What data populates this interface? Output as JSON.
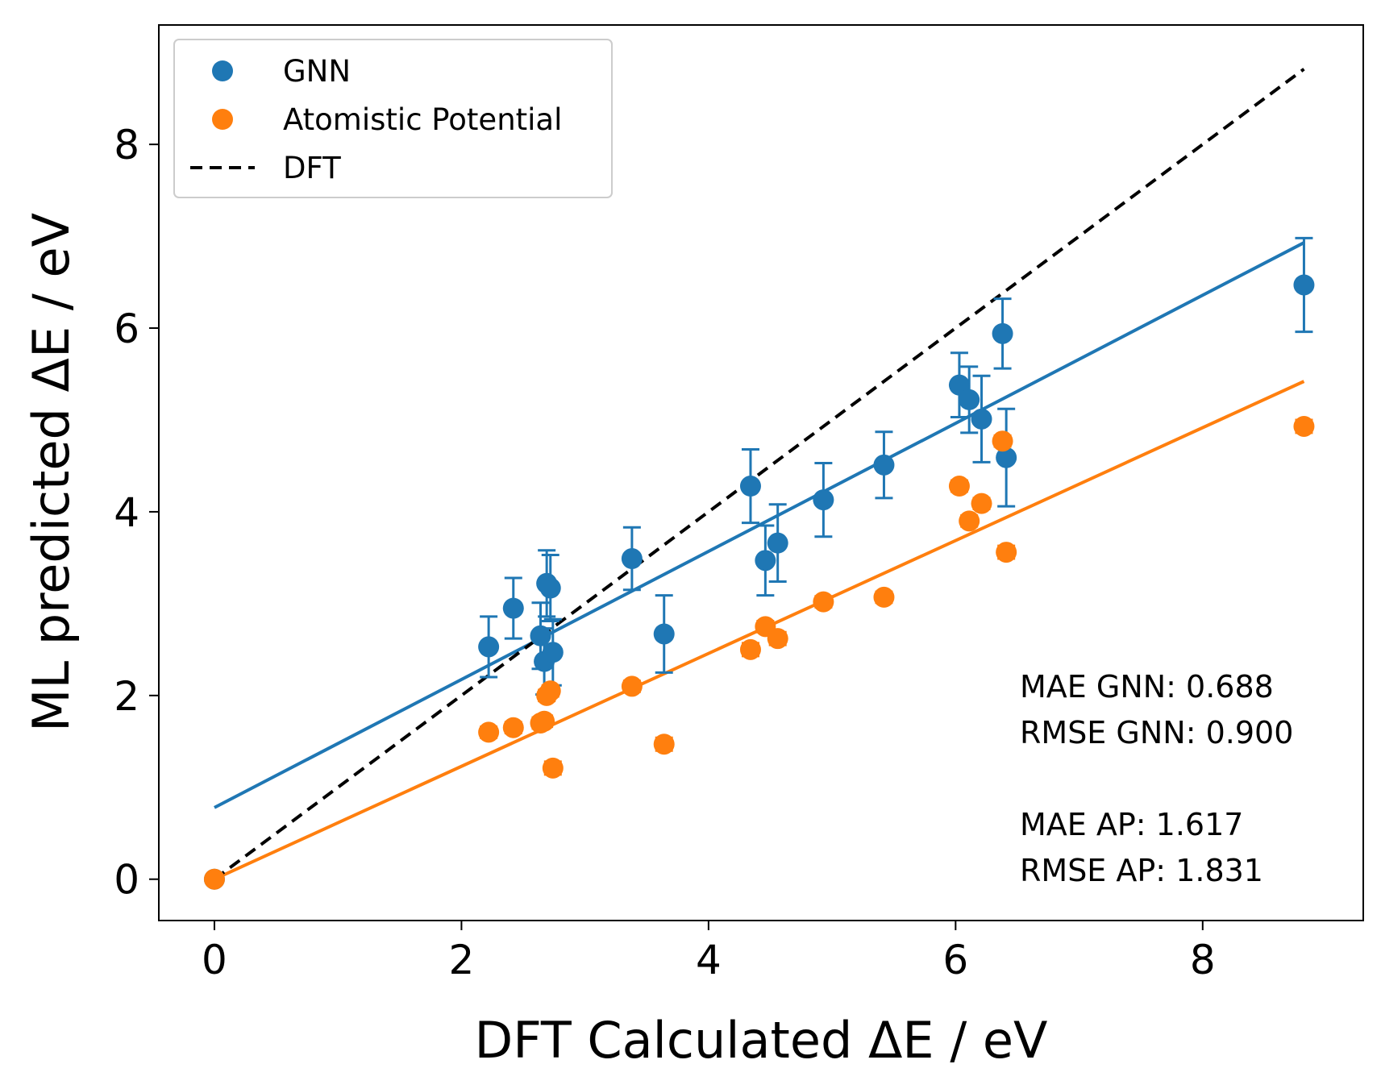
{
  "chart_data": {
    "type": "scatter",
    "title": "",
    "xlabel": "DFT Calculated ΔE / eV",
    "ylabel": "ML predicted ΔE / eV",
    "xlim": [
      -0.45,
      9.3
    ],
    "ylim": [
      -0.45,
      9.3
    ],
    "xticks": [
      0,
      2,
      4,
      6,
      8
    ],
    "yticks": [
      0,
      2,
      4,
      6,
      8
    ],
    "xtick_labels": [
      "0",
      "2",
      "4",
      "6",
      "8"
    ],
    "ytick_labels": [
      "0",
      "2",
      "4",
      "6",
      "8"
    ],
    "grid": false,
    "legend_position": "top-left",
    "legend": [
      {
        "label": "GNN",
        "kind": "marker",
        "color": "#1f77b4"
      },
      {
        "label": "Atomistic Potential",
        "kind": "marker",
        "color": "#ff7f0e"
      },
      {
        "label": "DFT",
        "kind": "dashed-line",
        "color": "#000000"
      }
    ],
    "series": [
      {
        "name": "GNN",
        "color": "#1f77b4",
        "points": [
          {
            "x": 0,
            "y": 0,
            "err": 0
          },
          {
            "x": 2.22,
            "y": 2.53,
            "err": 0.33
          },
          {
            "x": 2.42,
            "y": 2.95,
            "err": 0.33
          },
          {
            "x": 2.64,
            "y": 2.65,
            "err": 0.36
          },
          {
            "x": 2.67,
            "y": 2.37,
            "err": 0.36
          },
          {
            "x": 2.69,
            "y": 3.22,
            "err": 0.36
          },
          {
            "x": 2.72,
            "y": 3.17,
            "err": 0.36
          },
          {
            "x": 2.74,
            "y": 2.47,
            "err": 0.36
          },
          {
            "x": 3.38,
            "y": 3.49,
            "err": 0.34
          },
          {
            "x": 3.64,
            "y": 2.67,
            "err": 0.42
          },
          {
            "x": 4.34,
            "y": 4.28,
            "err": 0.4
          },
          {
            "x": 4.46,
            "y": 3.47,
            "err": 0.38
          },
          {
            "x": 4.56,
            "y": 3.66,
            "err": 0.42
          },
          {
            "x": 4.93,
            "y": 4.13,
            "err": 0.4
          },
          {
            "x": 5.42,
            "y": 4.51,
            "err": 0.36
          },
          {
            "x": 6.03,
            "y": 5.38,
            "err": 0.35
          },
          {
            "x": 6.11,
            "y": 5.22,
            "err": 0.36
          },
          {
            "x": 6.21,
            "y": 5.01,
            "err": 0.47
          },
          {
            "x": 6.38,
            "y": 5.94,
            "err": 0.38
          },
          {
            "x": 6.41,
            "y": 4.59,
            "err": 0.53
          },
          {
            "x": 8.82,
            "y": 6.47,
            "err": 0.51
          }
        ],
        "fit": {
          "x0": 0,
          "y0": 0.78,
          "x1": 8.82,
          "y1": 6.93
        }
      },
      {
        "name": "Atomistic Potential",
        "color": "#ff7f0e",
        "points": [
          {
            "x": 0,
            "y": 0,
            "err": 0
          },
          {
            "x": 2.22,
            "y": 1.6,
            "err": 0.06
          },
          {
            "x": 2.42,
            "y": 1.65,
            "err": 0.06
          },
          {
            "x": 2.64,
            "y": 1.7,
            "err": 0.06
          },
          {
            "x": 2.67,
            "y": 1.72,
            "err": 0.06
          },
          {
            "x": 2.69,
            "y": 2.0,
            "err": 0.06
          },
          {
            "x": 2.72,
            "y": 2.05,
            "err": 0.06
          },
          {
            "x": 2.74,
            "y": 1.21,
            "err": 0.07
          },
          {
            "x": 3.38,
            "y": 2.1,
            "err": 0.06
          },
          {
            "x": 3.64,
            "y": 1.47,
            "err": 0.07
          },
          {
            "x": 4.34,
            "y": 2.5,
            "err": 0.07
          },
          {
            "x": 4.46,
            "y": 2.75,
            "err": 0.06
          },
          {
            "x": 4.56,
            "y": 2.62,
            "err": 0.07
          },
          {
            "x": 4.93,
            "y": 3.02,
            "err": 0.06
          },
          {
            "x": 5.42,
            "y": 3.07,
            "err": 0.06
          },
          {
            "x": 6.03,
            "y": 4.28,
            "err": 0.06
          },
          {
            "x": 6.11,
            "y": 3.9,
            "err": 0.06
          },
          {
            "x": 6.21,
            "y": 4.09,
            "err": 0.06
          },
          {
            "x": 6.38,
            "y": 4.77,
            "err": 0.06
          },
          {
            "x": 6.41,
            "y": 3.56,
            "err": 0.07
          },
          {
            "x": 8.82,
            "y": 4.93,
            "err": 0.07
          }
        ],
        "fit": {
          "x0": 0,
          "y0": 0.0,
          "x1": 8.82,
          "y1": 5.42
        }
      }
    ],
    "reference_line": {
      "name": "DFT",
      "color": "#000000",
      "style": "dashed",
      "x0": 0,
      "y0": 0,
      "x1": 8.82,
      "y1": 8.82
    },
    "annotations": [
      "MAE GNN: 0.688",
      "RMSE GNN: 0.900",
      "",
      "MAE AP: 1.617",
      "RMSE AP: 1.831"
    ]
  }
}
